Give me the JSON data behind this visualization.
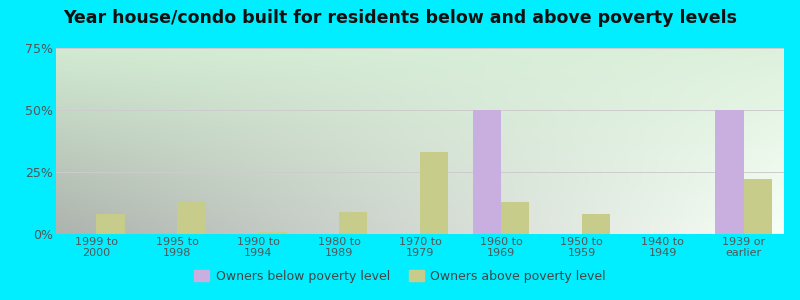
{
  "title": "Year house/condo built for residents below and above poverty levels",
  "categories": [
    "1999 to\n2000",
    "1995 to\n1998",
    "1990 to\n1994",
    "1980 to\n1989",
    "1970 to\n1979",
    "1960 to\n1969",
    "1950 to\n1959",
    "1940 to\n1949",
    "1939 or\nearlier"
  ],
  "below_poverty": [
    0,
    0,
    0,
    0,
    0,
    50,
    0,
    0,
    50
  ],
  "above_poverty": [
    8,
    13,
    1,
    9,
    33,
    13,
    8,
    0,
    22
  ],
  "below_color": "#c9aee0",
  "above_color": "#c8cc8a",
  "outer_bg": "#00eeff",
  "plot_bg_topleft": "#c8e6c9",
  "plot_bg_topright": "#e8f5e9",
  "plot_bg_bottom": "#f5fff8",
  "ylim": [
    0,
    75
  ],
  "yticks": [
    0,
    25,
    50,
    75
  ],
  "ytick_labels": [
    "0%",
    "25%",
    "50%",
    "75%"
  ],
  "title_fontsize": 12.5,
  "tick_color": "#555555",
  "legend_below_label": "Owners below poverty level",
  "legend_above_label": "Owners above poverty level",
  "bar_width": 0.35,
  "grid_color": "#cccccc"
}
